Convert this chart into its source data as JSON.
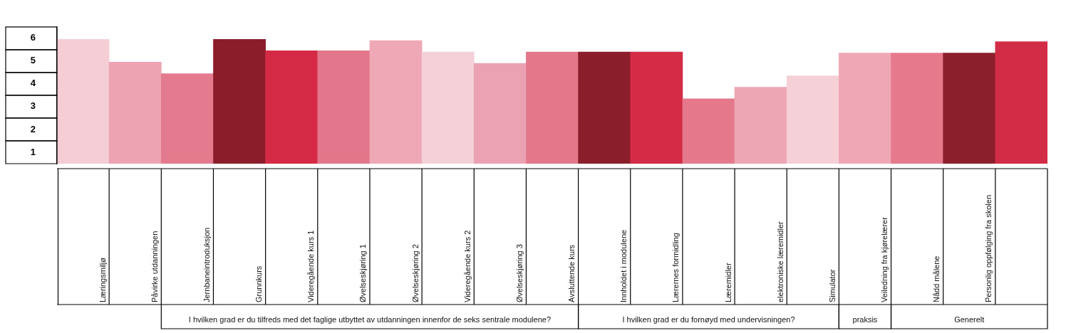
{
  "chart_data": {
    "type": "bar",
    "categories": [
      "Læringsmiljø",
      "Påvirke utdanningen",
      "Jernbaneintroduksjon",
      "Grunnkurs",
      "Videregående kurs 1",
      "Øvelseskjøring 1",
      "Øvelseskjøring 2",
      "Videregående kurs 2",
      "Øvelseskjøring 3",
      "Avsluttende kurs",
      "Innholdet i modulene",
      "Lærernes formidling",
      "Læremidler",
      "elektroniske læremidler",
      "Simulator",
      "Veiledning fra kjørelærer",
      "Nådd målene",
      "Personlig oppfølging fra skolen",
      null
    ],
    "values": [
      5.95,
      4.95,
      4.45,
      5.95,
      5.45,
      5.45,
      5.9,
      5.4,
      4.9,
      5.4,
      5.4,
      5.4,
      3.35,
      3.85,
      4.35,
      5.35,
      5.35,
      5.35,
      5.85
    ],
    "colors": [
      "#f4cdd5",
      "#eda3b2",
      "#e47a8d",
      "#8b1c2a",
      "#d42a45",
      "#e2768a",
      "#efa8b6",
      "#f4d0d8",
      "#eba3b3",
      "#e3788b",
      "#8a1f2b",
      "#d42c46",
      "#e4798c",
      "#eda6b4",
      "#f5d0d7",
      "#efa7b5",
      "#e47a8c",
      "#8b1f2c",
      "#d32c46"
    ],
    "ylim": [
      0.5,
      6.5
    ],
    "yticks": [
      1,
      2,
      3,
      4,
      5,
      6
    ],
    "grid": false,
    "legend": false,
    "annotations": [
      "I hvilken grad er du tilfreds med det faglige utbyttet av utdanningen innenfor de seks sentrale modulene?",
      "I hvilken grad er du fornøyd med undervisningen?",
      "praksis",
      "Generelt"
    ]
  }
}
